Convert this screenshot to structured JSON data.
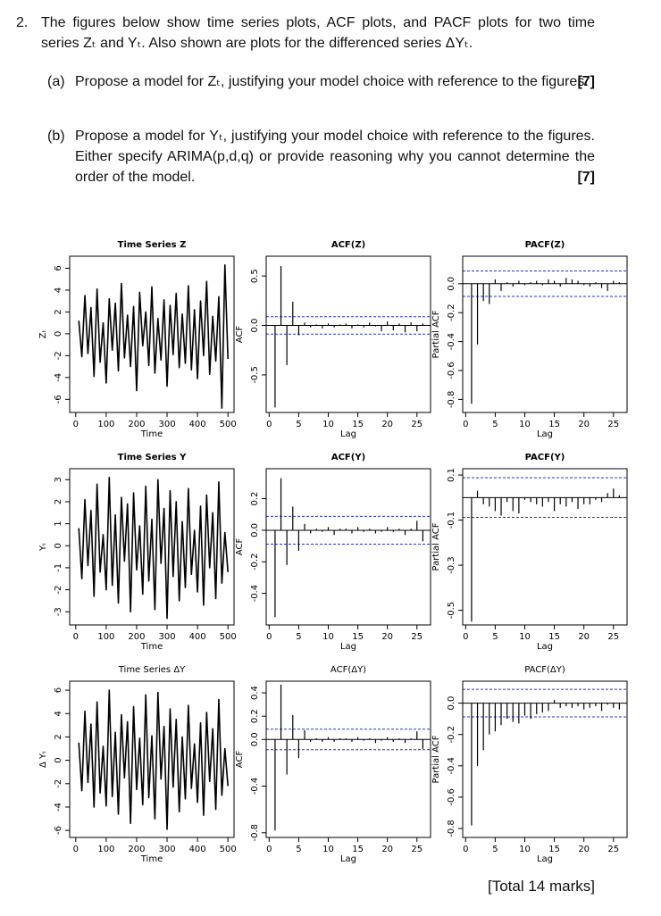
{
  "question": {
    "number": "2.",
    "text": "The figures below show time series plots, ACF plots, and PACF plots for two time series Zₜ and Yₜ. Also shown are plots for the differenced series ΔYₜ.",
    "parts": [
      {
        "label": "(a)",
        "text": "Propose a model for Zₜ, justifying your model choice with reference to the figures.",
        "marks": "[7]"
      },
      {
        "label": "(b)",
        "text": "Propose a model for Yₜ, justifying your model choice with reference to the figures. Either specify ARIMA(p,d,q) or provide reasoning why you cannot determine the order of the model.",
        "marks": "[7]"
      }
    ],
    "total": "[Total 14 marks]"
  },
  "chart_data": [
    {
      "type": "line",
      "title": "Time Series Z",
      "bold": true,
      "xlabel": "Time",
      "ylabel": "Zₜ",
      "x": [
        10,
        20,
        30,
        40,
        50,
        60,
        70,
        80,
        90,
        100,
        110,
        120,
        130,
        140,
        150,
        160,
        170,
        180,
        190,
        200,
        210,
        220,
        230,
        240,
        250,
        260,
        270,
        280,
        290,
        300,
        310,
        320,
        330,
        340,
        350,
        360,
        370,
        380,
        390,
        400,
        410,
        420,
        430,
        440,
        450,
        460,
        470,
        480,
        490,
        500
      ],
      "values": [
        1.2,
        -2.1,
        3.5,
        -1.8,
        2.4,
        -3.9,
        4.1,
        -2.6,
        1.0,
        -4.5,
        3.2,
        -1.5,
        2.8,
        -3.4,
        4.6,
        -2.2,
        1.7,
        -3.0,
        2.5,
        -5.2,
        3.8,
        -1.1,
        2.0,
        -2.9,
        4.3,
        -3.6,
        1.4,
        -2.4,
        3.1,
        -4.8,
        2.6,
        -1.9,
        3.7,
        -3.1,
        1.8,
        -2.7,
        4.4,
        -3.3,
        2.2,
        -4.1,
        3.0,
        -2.0,
        4.8,
        -3.7,
        1.6,
        -2.5,
        3.4,
        -6.8,
        6.3,
        -2.3
      ],
      "color": "#000000",
      "xlim": [
        -20,
        520
      ],
      "xticks": [
        0,
        100,
        200,
        300,
        400,
        500
      ],
      "ylim": [
        -7.2,
        7.1
      ],
      "yticks": [
        -6,
        -4,
        -2,
        0,
        2,
        4,
        6
      ]
    },
    {
      "type": "stem",
      "title": "ACF(Z)",
      "bold": true,
      "xlabel": "Lag",
      "ylabel": "ACF",
      "x": [
        1,
        2,
        3,
        4,
        5,
        6,
        7,
        8,
        9,
        10,
        11,
        12,
        13,
        14,
        15,
        16,
        17,
        18,
        19,
        20,
        21,
        22,
        23,
        24,
        25,
        26
      ],
      "values": [
        -0.83,
        0.6,
        -0.4,
        0.24,
        -0.1,
        0.03,
        -0.02,
        0.01,
        -0.03,
        0.02,
        -0.02,
        0.01,
        0.02,
        -0.03,
        0.01,
        -0.02,
        0.03,
        -0.01,
        -0.06,
        0.04,
        -0.05,
        0.02,
        -0.07,
        0.03,
        -0.06,
        0.02
      ],
      "color": "#000000",
      "bounds": [
        -0.088,
        0.088
      ],
      "bound_color": "#2233dd",
      "xlim": [
        -0.5,
        27.3
      ],
      "xticks": [
        0,
        5,
        10,
        15,
        20,
        25
      ],
      "ylim": [
        -0.88,
        0.7
      ],
      "yticks": [
        -0.5,
        {
          "value": 0,
          "label": "0.0"
        },
        0.5
      ]
    },
    {
      "type": "stem",
      "title": "PACF(Z)",
      "bold": true,
      "xlabel": "Lag",
      "ylabel": "Partial ACF",
      "x": [
        1,
        2,
        3,
        4,
        5,
        6,
        7,
        8,
        9,
        10,
        11,
        12,
        13,
        14,
        15,
        16,
        17,
        18,
        19,
        20,
        21,
        22,
        23,
        24,
        25,
        26
      ],
      "values": [
        -0.83,
        -0.42,
        -0.12,
        -0.14,
        0.03,
        -0.05,
        0.01,
        -0.02,
        0.02,
        -0.01,
        0.01,
        0.02,
        -0.01,
        0.03,
        0.02,
        -0.02,
        0.04,
        0.03,
        0.02,
        -0.01,
        -0.02,
        0.01,
        -0.03,
        -0.05,
        0.02,
        0.01
      ],
      "color": "#000000",
      "bounds": [
        -0.088,
        0.088
      ],
      "bound_color": "#2233dd",
      "xlim": [
        -0.5,
        27.3
      ],
      "xticks": [
        0,
        5,
        10,
        15,
        20,
        25
      ],
      "ylim": [
        -0.89,
        0.19
      ],
      "yticks": [
        -0.8,
        -0.6,
        -0.4,
        -0.2,
        {
          "value": 0,
          "label": "0.0"
        }
      ]
    },
    {
      "type": "line",
      "title": "Time Series Y",
      "bold": true,
      "xlabel": "Time",
      "ylabel": "Yₜ",
      "x": [
        10,
        20,
        30,
        40,
        50,
        60,
        70,
        80,
        90,
        100,
        110,
        120,
        130,
        140,
        150,
        160,
        170,
        180,
        190,
        200,
        210,
        220,
        230,
        240,
        250,
        260,
        270,
        280,
        290,
        300,
        310,
        320,
        330,
        340,
        350,
        360,
        370,
        380,
        390,
        400,
        410,
        420,
        430,
        440,
        450,
        460,
        470,
        480,
        490,
        500
      ],
      "values": [
        0.8,
        -1.5,
        2.1,
        -0.9,
        1.6,
        -2.3,
        2.8,
        -1.2,
        0.5,
        -2.0,
        3.1,
        -1.8,
        1.4,
        -2.6,
        2.2,
        -0.7,
        1.9,
        -3.0,
        2.4,
        -1.1,
        0.9,
        -2.2,
        2.7,
        -1.6,
        1.2,
        -2.9,
        3.0,
        -0.8,
        1.7,
        -3.3,
        2.5,
        -1.4,
        2.0,
        -2.5,
        1.1,
        -1.9,
        2.6,
        -1.3,
        0.7,
        -2.1,
        1.8,
        -2.7,
        2.3,
        -1.0,
        1.5,
        -2.4,
        2.9,
        -1.7,
        0.6,
        -1.2
      ],
      "color": "#000000",
      "xlim": [
        -20,
        520
      ],
      "xticks": [
        0,
        100,
        200,
        300,
        400,
        500
      ],
      "ylim": [
        -3.6,
        3.5
      ],
      "yticks": [
        -3,
        -2,
        -1,
        0,
        1,
        2,
        3
      ]
    },
    {
      "type": "stem",
      "title": "ACF(Y)",
      "bold": true,
      "xlabel": "Lag",
      "ylabel": "ACF",
      "x": [
        1,
        2,
        3,
        4,
        5,
        6,
        7,
        8,
        9,
        10,
        11,
        12,
        13,
        14,
        15,
        16,
        17,
        18,
        19,
        20,
        21,
        22,
        23,
        24,
        25,
        26
      ],
      "values": [
        -0.55,
        0.33,
        -0.22,
        0.15,
        -0.13,
        0.04,
        -0.02,
        0.01,
        -0.01,
        0.02,
        -0.03,
        0.01,
        0.01,
        -0.02,
        0.02,
        -0.01,
        0.01,
        -0.02,
        -0.01,
        0.02,
        -0.01,
        0.01,
        -0.03,
        0.01,
        0.06,
        -0.07
      ],
      "color": "#000000",
      "bounds": [
        -0.088,
        0.088
      ],
      "bound_color": "#2233dd",
      "xlim": [
        -0.5,
        27.3
      ],
      "xticks": [
        0,
        5,
        10,
        15,
        20,
        25
      ],
      "ylim": [
        -0.6,
        0.39
      ],
      "yticks": [
        -0.4,
        -0.2,
        {
          "value": 0,
          "label": "0.0"
        },
        0.2
      ]
    },
    {
      "type": "stem",
      "title": "PACF(Y)",
      "bold": true,
      "xlabel": "Lag",
      "ylabel": "Partial ACF",
      "x": [
        1,
        2,
        3,
        4,
        5,
        6,
        7,
        8,
        9,
        10,
        11,
        12,
        13,
        14,
        15,
        16,
        17,
        18,
        19,
        20,
        21,
        22,
        23,
        24,
        25,
        26
      ],
      "values": [
        -0.55,
        0.03,
        -0.03,
        -0.04,
        -0.06,
        -0.08,
        -0.02,
        -0.06,
        -0.07,
        -0.01,
        -0.02,
        -0.03,
        -0.04,
        -0.02,
        -0.06,
        -0.03,
        -0.04,
        -0.02,
        -0.05,
        -0.03,
        -0.03,
        -0.01,
        -0.02,
        0.02,
        0.04,
        0.01
      ],
      "color": "#000000",
      "bounds": [
        -0.088,
        0.088
      ],
      "bound_color": "#2233dd",
      "xlim": [
        -0.5,
        27.3
      ],
      "xticks": [
        0,
        5,
        10,
        15,
        20,
        25
      ],
      "ylim": [
        -0.565,
        0.128
      ],
      "yticks": [
        -0.5,
        -0.3,
        -0.1,
        0.1
      ]
    },
    {
      "type": "line",
      "title": "Time Series ΔY",
      "bold": false,
      "xlabel": "Time",
      "ylabel": "Δ Yₜ",
      "x": [
        10,
        20,
        30,
        40,
        50,
        60,
        70,
        80,
        90,
        100,
        110,
        120,
        130,
        140,
        150,
        160,
        170,
        180,
        190,
        200,
        210,
        220,
        230,
        240,
        250,
        260,
        270,
        280,
        290,
        300,
        310,
        320,
        330,
        340,
        350,
        360,
        370,
        380,
        390,
        400,
        410,
        420,
        430,
        440,
        450,
        460,
        470,
        480,
        490,
        500
      ],
      "values": [
        1.5,
        -2.6,
        4.2,
        -1.9,
        3.1,
        -4.0,
        5.0,
        -2.8,
        1.2,
        -3.9,
        6.0,
        -3.1,
        2.4,
        -4.6,
        3.9,
        -1.5,
        3.3,
        -5.4,
        4.6,
        -2.5,
        1.9,
        -3.8,
        5.6,
        -3.2,
        2.1,
        -5.0,
        5.8,
        -1.6,
        2.9,
        -5.9,
        4.4,
        -2.3,
        3.5,
        -4.4,
        2.0,
        -3.3,
        4.7,
        -2.4,
        1.4,
        -3.6,
        3.2,
        -4.7,
        4.1,
        -1.8,
        2.7,
        -4.2,
        5.2,
        -3.0,
        1.0,
        -2.2
      ],
      "color": "#000000",
      "xlim": [
        -20,
        520
      ],
      "xticks": [
        0,
        100,
        200,
        300,
        400,
        500
      ],
      "ylim": [
        -6.6,
        6.77
      ],
      "yticks": [
        -6,
        -4,
        -2,
        0,
        2,
        4,
        6
      ]
    },
    {
      "type": "stem",
      "title": "ACF(ΔY)",
      "bold": false,
      "xlabel": "Lag",
      "ylabel": "ACF",
      "x": [
        1,
        2,
        3,
        4,
        5,
        6,
        7,
        8,
        9,
        10,
        11,
        12,
        13,
        14,
        15,
        16,
        17,
        18,
        19,
        20,
        21,
        22,
        23,
        24,
        25,
        26
      ],
      "values": [
        -0.78,
        0.47,
        -0.3,
        0.21,
        -0.16,
        0.08,
        -0.02,
        0.01,
        -0.02,
        0.02,
        -0.02,
        0.01,
        0.01,
        -0.02,
        0.02,
        -0.01,
        0.01,
        -0.03,
        -0.01,
        0.02,
        -0.02,
        0.01,
        -0.03,
        0.01,
        0.07,
        -0.08
      ],
      "color": "#000000",
      "bounds": [
        -0.088,
        0.088
      ],
      "bound_color": "#2233dd",
      "xlim": [
        -0.5,
        27.3
      ],
      "xticks": [
        0,
        5,
        10,
        15,
        20,
        25
      ],
      "ylim": [
        -0.84,
        0.5
      ],
      "yticks": [
        -0.8,
        -0.4,
        {
          "value": 0,
          "label": "0.0"
        },
        0.2,
        0.4
      ]
    },
    {
      "type": "stem",
      "title": "PACF(ΔY)",
      "bold": false,
      "xlabel": "Lag",
      "ylabel": "Partial ACF",
      "x": [
        1,
        2,
        3,
        4,
        5,
        6,
        7,
        8,
        9,
        10,
        11,
        12,
        13,
        14,
        15,
        16,
        17,
        18,
        19,
        20,
        21,
        22,
        23,
        24,
        25,
        26
      ],
      "values": [
        -0.78,
        -0.4,
        -0.3,
        -0.2,
        -0.18,
        -0.14,
        -0.1,
        -0.12,
        -0.13,
        -0.08,
        -0.1,
        -0.07,
        -0.06,
        -0.05,
        0.02,
        -0.03,
        -0.02,
        -0.03,
        -0.02,
        -0.04,
        -0.03,
        -0.02,
        -0.05,
        -0.01,
        -0.03,
        -0.04
      ],
      "color": "#000000",
      "bounds": [
        -0.088,
        0.088
      ],
      "bound_color": "#2233dd",
      "xlim": [
        -0.5,
        27.3
      ],
      "xticks": [
        0,
        5,
        10,
        15,
        20,
        25
      ],
      "ylim": [
        -0.857,
        0.14
      ],
      "yticks": [
        -0.8,
        -0.6,
        -0.4,
        -0.2,
        {
          "value": 0,
          "label": "0.0"
        }
      ]
    }
  ]
}
